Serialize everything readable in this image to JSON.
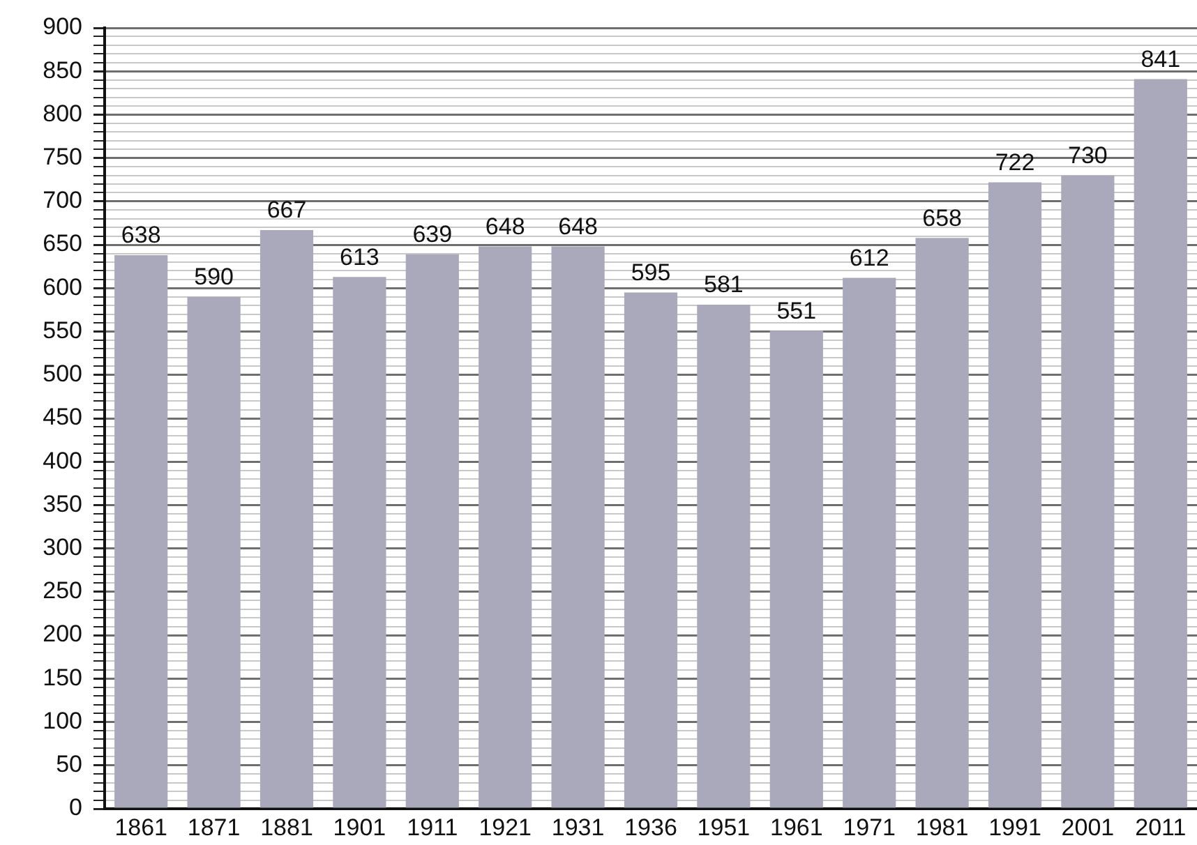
{
  "chart_data": {
    "type": "bar",
    "categories": [
      "1861",
      "1871",
      "1881",
      "1901",
      "1911",
      "1921",
      "1931",
      "1936",
      "1951",
      "1961",
      "1971",
      "1981",
      "1991",
      "2001",
      "2011"
    ],
    "values": [
      638,
      590,
      667,
      613,
      639,
      648,
      648,
      595,
      581,
      551,
      612,
      658,
      722,
      730,
      841
    ],
    "color": "#a9a9bb",
    "ylim": [
      0,
      900
    ],
    "yticks": [
      0,
      {
        "value": 10,
        "label": null
      },
      {
        "value": 20,
        "label": null
      },
      {
        "value": 30,
        "label": null
      },
      {
        "value": 40,
        "label": null
      },
      50,
      {
        "value": 60,
        "label": null
      },
      {
        "value": 70,
        "label": null
      },
      {
        "value": 80,
        "label": null
      },
      {
        "value": 90,
        "label": null
      },
      100,
      {
        "value": 110,
        "label": null
      },
      {
        "value": 120,
        "label": null
      },
      {
        "value": 130,
        "label": null
      },
      {
        "value": 140,
        "label": null
      },
      150,
      {
        "value": 160,
        "label": null
      },
      {
        "value": 170,
        "label": null
      },
      {
        "value": 180,
        "label": null
      },
      {
        "value": 190,
        "label": null
      },
      200,
      {
        "value": 210,
        "label": null
      },
      {
        "value": 220,
        "label": null
      },
      {
        "value": 230,
        "label": null
      },
      {
        "value": 240,
        "label": null
      },
      250,
      {
        "value": 260,
        "label": null
      },
      {
        "value": 270,
        "label": null
      },
      {
        "value": 280,
        "label": null
      },
      {
        "value": 290,
        "label": null
      },
      300,
      {
        "value": 310,
        "label": null
      },
      {
        "value": 320,
        "label": null
      },
      {
        "value": 330,
        "label": null
      },
      {
        "value": 340,
        "label": null
      },
      350,
      {
        "value": 360,
        "label": null
      },
      {
        "value": 370,
        "label": null
      },
      {
        "value": 380,
        "label": null
      },
      {
        "value": 390,
        "label": null
      },
      400,
      {
        "value": 410,
        "label": null
      },
      {
        "value": 420,
        "label": null
      },
      {
        "value": 430,
        "label": null
      },
      {
        "value": 440,
        "label": null
      },
      450,
      {
        "value": 460,
        "label": null
      },
      {
        "value": 470,
        "label": null
      },
      {
        "value": 480,
        "label": null
      },
      {
        "value": 490,
        "label": null
      },
      500,
      {
        "value": 510,
        "label": null
      },
      {
        "value": 520,
        "label": null
      },
      {
        "value": 530,
        "label": null
      },
      {
        "value": 540,
        "label": null
      },
      550,
      {
        "value": 560,
        "label": null
      },
      {
        "value": 570,
        "label": null
      },
      {
        "value": 580,
        "label": null
      },
      {
        "value": 590,
        "label": null
      },
      600,
      {
        "value": 610,
        "label": null
      },
      {
        "value": 620,
        "label": null
      },
      {
        "value": 630,
        "label": null
      },
      {
        "value": 640,
        "label": null
      },
      650,
      {
        "value": 660,
        "label": null
      },
      {
        "value": 670,
        "label": null
      },
      {
        "value": 680,
        "label": null
      },
      {
        "value": 690,
        "label": null
      },
      700,
      {
        "value": 710,
        "label": null
      },
      {
        "value": 720,
        "label": null
      },
      {
        "value": 730,
        "label": null
      },
      {
        "value": 740,
        "label": null
      },
      750,
      {
        "value": 760,
        "label": null
      },
      {
        "value": 770,
        "label": null
      },
      {
        "value": 780,
        "label": null
      },
      {
        "value": 790,
        "label": null
      },
      800,
      {
        "value": 810,
        "label": null
      },
      {
        "value": 820,
        "label": null
      },
      {
        "value": 830,
        "label": null
      },
      {
        "value": 840,
        "label": null
      },
      850,
      {
        "value": 860,
        "label": null
      },
      {
        "value": 870,
        "label": null
      },
      {
        "value": 880,
        "label": null
      },
      {
        "value": 890,
        "label": null
      },
      900
    ],
    "grid": "y",
    "data_labels": true
  }
}
